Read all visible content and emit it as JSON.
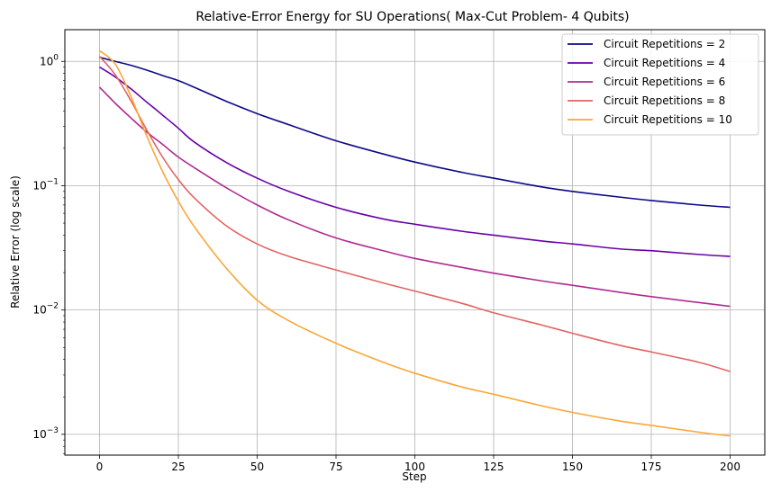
{
  "chart_data": {
    "type": "line",
    "title": "Relative-Error Energy for SU Operations( Max-Cut Problem- 4 Qubits)",
    "xlabel": "Step",
    "ylabel": "Relative Error (log scale)",
    "xlim": [
      -11,
      211
    ],
    "ylim": [
      0.00068,
      1.8
    ],
    "yscale": "log",
    "grid": true,
    "legend_position": "top-right",
    "x_ticks": [
      {
        "value": 0,
        "label": "0"
      },
      {
        "value": 25,
        "label": "25"
      },
      {
        "value": 50,
        "label": "50"
      },
      {
        "value": 75,
        "label": "75"
      },
      {
        "value": 100,
        "label": "100"
      },
      {
        "value": 125,
        "label": "125"
      },
      {
        "value": 150,
        "label": "150"
      },
      {
        "value": 175,
        "label": "175"
      },
      {
        "value": 200,
        "label": "200"
      }
    ],
    "y_ticks": [
      {
        "value": 1,
        "label": "10^0",
        "base": "10",
        "exp": "0"
      },
      {
        "value": 0.1,
        "label": "10^-1",
        "base": "10",
        "exp": "−1"
      },
      {
        "value": 0.01,
        "label": "10^-2",
        "base": "10",
        "exp": "−2"
      },
      {
        "value": 0.001,
        "label": "10^-3",
        "base": "10",
        "exp": "−3"
      }
    ],
    "series": [
      {
        "name": "Circuit Repetitions = 2",
        "color": "#0d0887",
        "x": [
          0,
          5,
          10,
          15,
          20,
          25,
          30,
          40,
          50,
          60,
          75,
          90,
          100,
          115,
          125,
          140,
          150,
          165,
          175,
          190,
          200
        ],
        "values": [
          1.08,
          1.0,
          0.93,
          0.85,
          0.77,
          0.7,
          0.62,
          0.48,
          0.38,
          0.31,
          0.23,
          0.18,
          0.155,
          0.128,
          0.115,
          0.098,
          0.09,
          0.081,
          0.076,
          0.07,
          0.067
        ]
      },
      {
        "name": "Circuit Repetitions = 4",
        "color": "#6a00a8",
        "x": [
          0,
          5,
          10,
          15,
          20,
          25,
          30,
          40,
          50,
          60,
          75,
          90,
          100,
          115,
          125,
          140,
          150,
          165,
          175,
          190,
          200
        ],
        "values": [
          0.9,
          0.75,
          0.6,
          0.47,
          0.37,
          0.29,
          0.225,
          0.155,
          0.115,
          0.09,
          0.067,
          0.054,
          0.049,
          0.043,
          0.04,
          0.036,
          0.034,
          0.031,
          0.03,
          0.028,
          0.027
        ]
      },
      {
        "name": "Circuit Repetitions = 6",
        "color": "#b12a90",
        "x": [
          0,
          5,
          10,
          15,
          20,
          25,
          30,
          40,
          50,
          60,
          75,
          90,
          100,
          115,
          125,
          140,
          150,
          165,
          175,
          190,
          200
        ],
        "values": [
          0.62,
          0.46,
          0.35,
          0.27,
          0.215,
          0.17,
          0.14,
          0.097,
          0.07,
          0.053,
          0.038,
          0.03,
          0.026,
          0.022,
          0.0198,
          0.0172,
          0.0158,
          0.0139,
          0.0128,
          0.0115,
          0.0107
        ]
      },
      {
        "name": "Circuit Repetitions = 8",
        "color": "#e16462",
        "x": [
          0,
          5,
          10,
          15,
          20,
          25,
          30,
          40,
          50,
          60,
          75,
          90,
          100,
          115,
          125,
          140,
          150,
          165,
          175,
          190,
          200
        ],
        "values": [
          1.1,
          0.78,
          0.48,
          0.28,
          0.17,
          0.112,
          0.08,
          0.048,
          0.034,
          0.027,
          0.021,
          0.0165,
          0.0142,
          0.0113,
          0.0095,
          0.0076,
          0.0065,
          0.0052,
          0.0046,
          0.0038,
          0.0032
        ]
      },
      {
        "name": "Circuit Repetitions = 10",
        "color": "#fca636",
        "x": [
          0,
          5,
          10,
          15,
          20,
          25,
          30,
          40,
          50,
          60,
          75,
          90,
          100,
          115,
          125,
          140,
          150,
          165,
          175,
          190,
          200
        ],
        "values": [
          1.22,
          0.95,
          0.52,
          0.25,
          0.13,
          0.075,
          0.047,
          0.022,
          0.012,
          0.0082,
          0.0054,
          0.0038,
          0.0031,
          0.0024,
          0.0021,
          0.0017,
          0.0015,
          0.00128,
          0.00118,
          0.00104,
          0.00097
        ]
      }
    ]
  }
}
